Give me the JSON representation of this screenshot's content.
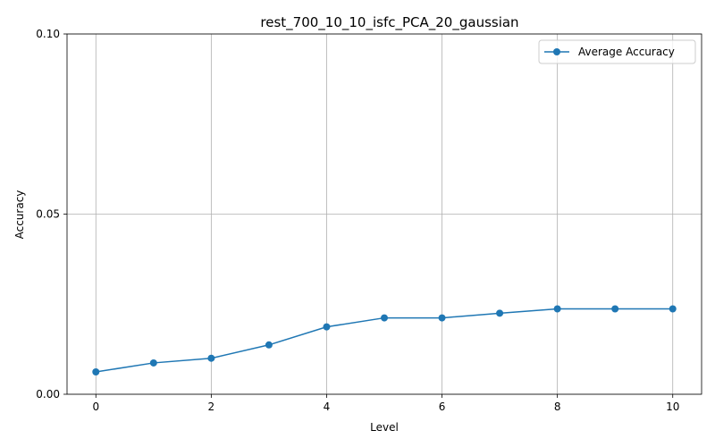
{
  "chart_data": {
    "type": "line",
    "title": "rest_700_10_10_isfc_PCA_20_gaussian",
    "xlabel": "Level",
    "ylabel": "Accuracy",
    "xlim": [
      -0.5,
      10.5
    ],
    "ylim": [
      0.0,
      0.1
    ],
    "xticks": [
      0,
      2,
      4,
      6,
      8,
      10
    ],
    "xtick_labels": [
      "0",
      "2",
      "4",
      "6",
      "8",
      "10"
    ],
    "yticks": [
      0.0,
      0.05,
      0.1
    ],
    "ytick_labels": [
      "0.00",
      "0.05",
      "0.10"
    ],
    "grid": true,
    "legend": "top-right",
    "series": [
      {
        "name": "Average Accuracy",
        "color": "#1f77b4",
        "marker": "circle",
        "x": [
          0,
          1,
          2,
          3,
          4,
          5,
          6,
          7,
          8,
          9,
          10
        ],
        "values": [
          0.0062,
          0.0087,
          0.01,
          0.0137,
          0.0187,
          0.0212,
          0.0212,
          0.0225,
          0.0237,
          0.0237,
          0.0237
        ]
      }
    ]
  }
}
